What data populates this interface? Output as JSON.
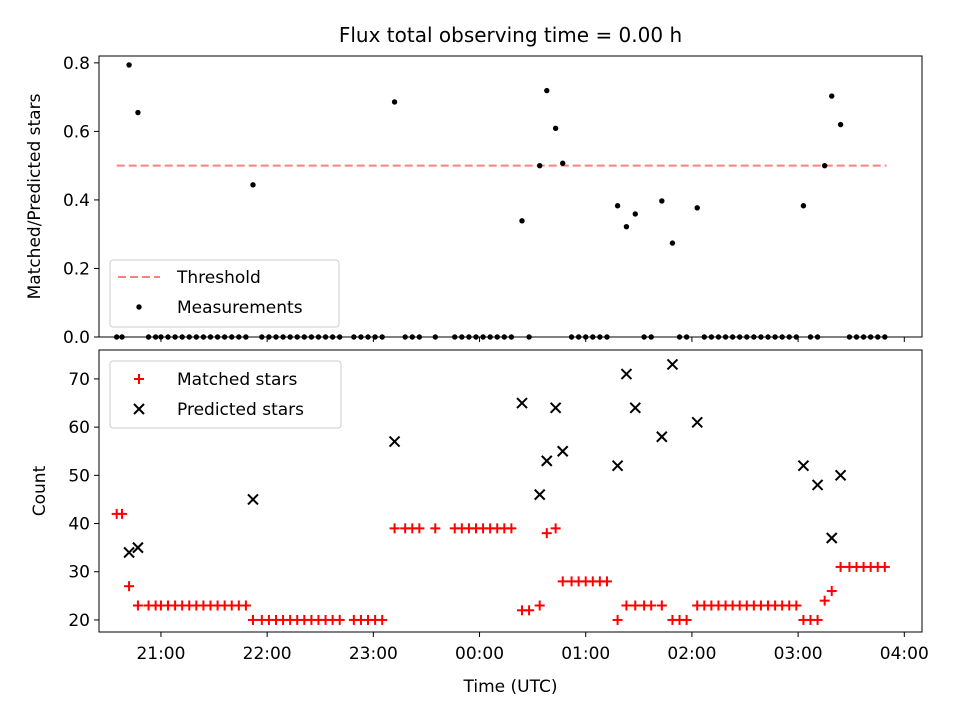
{
  "figure": {
    "title": "Flux total observing time = 0.00 h",
    "xlabel": "Time (UTC)"
  },
  "colors": {
    "threshold": "#ff7f7f",
    "measurements": "#000000",
    "matched": "#ff0000",
    "predicted": "#000000"
  },
  "chart_data": [
    {
      "type": "scatter",
      "title": "Flux total observing time = 0.00 h",
      "xlabel": "",
      "ylabel": "Matched/Predicted stars",
      "ylim": [
        0,
        0.82
      ],
      "xlim": [
        "20:25",
        "04:10"
      ],
      "x_ticks": [
        "21:00",
        "22:00",
        "23:00",
        "00:00",
        "01:00",
        "02:00",
        "03:00",
        "04:00"
      ],
      "y_ticks": [
        "0.0",
        "0.2",
        "0.4",
        "0.6",
        "0.8"
      ],
      "legend": {
        "position": "lower-left",
        "entries": [
          "Threshold",
          "Measurements"
        ]
      },
      "threshold": {
        "name": "Threshold",
        "value": 0.5,
        "x_range": [
          "20:35",
          "03:50"
        ]
      },
      "series": [
        {
          "name": "Measurements",
          "marker": "dot",
          "points": [
            [
              "20:35",
              0
            ],
            [
              "20:38",
              0
            ],
            [
              "20:42",
              0.794
            ],
            [
              "20:47",
              0.655
            ],
            [
              "20:53",
              0
            ],
            [
              "20:57",
              0
            ],
            [
              "21:00",
              0
            ],
            [
              "21:04",
              0
            ],
            [
              "21:08",
              0
            ],
            [
              "21:12",
              0
            ],
            [
              "21:16",
              0
            ],
            [
              "21:20",
              0
            ],
            [
              "21:24",
              0
            ],
            [
              "21:28",
              0
            ],
            [
              "21:32",
              0
            ],
            [
              "21:36",
              0
            ],
            [
              "21:40",
              0
            ],
            [
              "21:44",
              0
            ],
            [
              "21:48",
              0
            ],
            [
              "21:52",
              0.444
            ],
            [
              "21:57",
              0
            ],
            [
              "22:01",
              0
            ],
            [
              "22:05",
              0
            ],
            [
              "22:09",
              0
            ],
            [
              "22:13",
              0
            ],
            [
              "22:17",
              0
            ],
            [
              "22:21",
              0
            ],
            [
              "22:25",
              0
            ],
            [
              "22:29",
              0
            ],
            [
              "22:33",
              0
            ],
            [
              "22:37",
              0
            ],
            [
              "22:41",
              0
            ],
            [
              "22:49",
              0
            ],
            [
              "22:53",
              0
            ],
            [
              "22:57",
              0
            ],
            [
              "23:01",
              0
            ],
            [
              "23:05",
              0
            ],
            [
              "23:12",
              0.686
            ],
            [
              "23:18",
              0
            ],
            [
              "23:22",
              0
            ],
            [
              "23:26",
              0
            ],
            [
              "23:35",
              0
            ],
            [
              "23:46",
              0
            ],
            [
              "23:50",
              0
            ],
            [
              "23:54",
              0
            ],
            [
              "23:58",
              0
            ],
            [
              "00:02",
              0
            ],
            [
              "00:06",
              0
            ],
            [
              "00:10",
              0
            ],
            [
              "00:14",
              0
            ],
            [
              "00:18",
              0
            ],
            [
              "00:24",
              0.339
            ],
            [
              "00:28",
              0
            ],
            [
              "00:34",
              0.5
            ],
            [
              "00:38",
              0.719
            ],
            [
              "00:43",
              0.609
            ],
            [
              "00:47",
              0.507
            ],
            [
              "00:52",
              0
            ],
            [
              "00:56",
              0
            ],
            [
              "01:00",
              0
            ],
            [
              "01:04",
              0
            ],
            [
              "01:08",
              0
            ],
            [
              "01:12",
              0
            ],
            [
              "01:18",
              0.383
            ],
            [
              "01:23",
              0.322
            ],
            [
              "01:28",
              0.359
            ],
            [
              "01:33",
              0
            ],
            [
              "01:37",
              0
            ],
            [
              "01:43",
              0.397
            ],
            [
              "01:49",
              0.274
            ],
            [
              "01:53",
              0
            ],
            [
              "01:57",
              0
            ],
            [
              "02:03",
              0.377
            ],
            [
              "02:07",
              0
            ],
            [
              "02:11",
              0
            ],
            [
              "02:15",
              0
            ],
            [
              "02:19",
              0
            ],
            [
              "02:23",
              0
            ],
            [
              "02:27",
              0
            ],
            [
              "02:31",
              0
            ],
            [
              "02:35",
              0
            ],
            [
              "02:39",
              0
            ],
            [
              "02:43",
              0
            ],
            [
              "02:47",
              0
            ],
            [
              "02:51",
              0
            ],
            [
              "02:55",
              0
            ],
            [
              "02:59",
              0
            ],
            [
              "03:03",
              0.383
            ],
            [
              "03:07",
              0
            ],
            [
              "03:11",
              0
            ],
            [
              "03:15",
              0.5
            ],
            [
              "03:19",
              0.703
            ],
            [
              "03:24",
              0.62
            ],
            [
              "03:29",
              0
            ],
            [
              "03:33",
              0
            ],
            [
              "03:37",
              0
            ],
            [
              "03:41",
              0
            ],
            [
              "03:45",
              0
            ],
            [
              "03:49",
              0
            ]
          ]
        }
      ]
    },
    {
      "type": "scatter",
      "title": "",
      "xlabel": "Time (UTC)",
      "ylabel": "Count",
      "ylim": [
        17.5,
        76
      ],
      "xlim": [
        "20:25",
        "04:10"
      ],
      "x_ticks": [
        "21:00",
        "22:00",
        "23:00",
        "00:00",
        "01:00",
        "02:00",
        "03:00",
        "04:00"
      ],
      "y_ticks": [
        "20",
        "30",
        "40",
        "50",
        "60",
        "70"
      ],
      "legend": {
        "position": "upper-left",
        "entries": [
          "Matched stars",
          "Predicted stars"
        ]
      },
      "series": [
        {
          "name": "Matched stars",
          "marker": "plus",
          "points": [
            [
              "20:35",
              42
            ],
            [
              "20:38",
              42
            ],
            [
              "20:42",
              27
            ],
            [
              "20:47",
              23
            ],
            [
              "20:53",
              23
            ],
            [
              "20:57",
              23
            ],
            [
              "21:00",
              23
            ],
            [
              "21:04",
              23
            ],
            [
              "21:08",
              23
            ],
            [
              "21:12",
              23
            ],
            [
              "21:16",
              23
            ],
            [
              "21:20",
              23
            ],
            [
              "21:24",
              23
            ],
            [
              "21:28",
              23
            ],
            [
              "21:32",
              23
            ],
            [
              "21:36",
              23
            ],
            [
              "21:40",
              23
            ],
            [
              "21:44",
              23
            ],
            [
              "21:48",
              23
            ],
            [
              "21:52",
              20
            ],
            [
              "21:57",
              20
            ],
            [
              "22:01",
              20
            ],
            [
              "22:05",
              20
            ],
            [
              "22:09",
              20
            ],
            [
              "22:13",
              20
            ],
            [
              "22:17",
              20
            ],
            [
              "22:21",
              20
            ],
            [
              "22:25",
              20
            ],
            [
              "22:29",
              20
            ],
            [
              "22:33",
              20
            ],
            [
              "22:37",
              20
            ],
            [
              "22:41",
              20
            ],
            [
              "22:49",
              20
            ],
            [
              "22:53",
              20
            ],
            [
              "22:57",
              20
            ],
            [
              "23:01",
              20
            ],
            [
              "23:05",
              20
            ],
            [
              "23:12",
              39
            ],
            [
              "23:18",
              39
            ],
            [
              "23:22",
              39
            ],
            [
              "23:26",
              39
            ],
            [
              "23:35",
              39
            ],
            [
              "23:46",
              39
            ],
            [
              "23:50",
              39
            ],
            [
              "23:54",
              39
            ],
            [
              "23:58",
              39
            ],
            [
              "00:02",
              39
            ],
            [
              "00:06",
              39
            ],
            [
              "00:10",
              39
            ],
            [
              "00:14",
              39
            ],
            [
              "00:18",
              39
            ],
            [
              "00:24",
              22
            ],
            [
              "00:28",
              22
            ],
            [
              "00:34",
              23
            ],
            [
              "00:38",
              38
            ],
            [
              "00:43",
              39
            ],
            [
              "00:47",
              28
            ],
            [
              "00:52",
              28
            ],
            [
              "00:56",
              28
            ],
            [
              "01:00",
              28
            ],
            [
              "01:04",
              28
            ],
            [
              "01:08",
              28
            ],
            [
              "01:12",
              28
            ],
            [
              "01:18",
              20
            ],
            [
              "01:23",
              23
            ],
            [
              "01:28",
              23
            ],
            [
              "01:33",
              23
            ],
            [
              "01:37",
              23
            ],
            [
              "01:43",
              23
            ],
            [
              "01:49",
              20
            ],
            [
              "01:53",
              20
            ],
            [
              "01:57",
              20
            ],
            [
              "02:03",
              23
            ],
            [
              "02:07",
              23
            ],
            [
              "02:11",
              23
            ],
            [
              "02:15",
              23
            ],
            [
              "02:19",
              23
            ],
            [
              "02:23",
              23
            ],
            [
              "02:27",
              23
            ],
            [
              "02:31",
              23
            ],
            [
              "02:35",
              23
            ],
            [
              "02:39",
              23
            ],
            [
              "02:43",
              23
            ],
            [
              "02:47",
              23
            ],
            [
              "02:51",
              23
            ],
            [
              "02:55",
              23
            ],
            [
              "02:59",
              23
            ],
            [
              "03:03",
              20
            ],
            [
              "03:07",
              20
            ],
            [
              "03:11",
              20
            ],
            [
              "03:15",
              24
            ],
            [
              "03:19",
              26
            ],
            [
              "03:24",
              31
            ],
            [
              "03:29",
              31
            ],
            [
              "03:33",
              31
            ],
            [
              "03:37",
              31
            ],
            [
              "03:41",
              31
            ],
            [
              "03:45",
              31
            ],
            [
              "03:49",
              31
            ]
          ]
        },
        {
          "name": "Predicted stars",
          "marker": "x",
          "points": [
            [
              "20:42",
              34
            ],
            [
              "20:47",
              35
            ],
            [
              "21:52",
              45
            ],
            [
              "23:12",
              57
            ],
            [
              "00:24",
              65
            ],
            [
              "00:34",
              46
            ],
            [
              "00:38",
              53
            ],
            [
              "00:43",
              64
            ],
            [
              "00:47",
              55
            ],
            [
              "01:18",
              52
            ],
            [
              "01:23",
              71
            ],
            [
              "01:28",
              64
            ],
            [
              "01:43",
              58
            ],
            [
              "01:49",
              73
            ],
            [
              "02:03",
              61
            ],
            [
              "03:03",
              52
            ],
            [
              "03:11",
              48
            ],
            [
              "03:19",
              37
            ],
            [
              "03:24",
              50
            ]
          ]
        }
      ]
    }
  ]
}
